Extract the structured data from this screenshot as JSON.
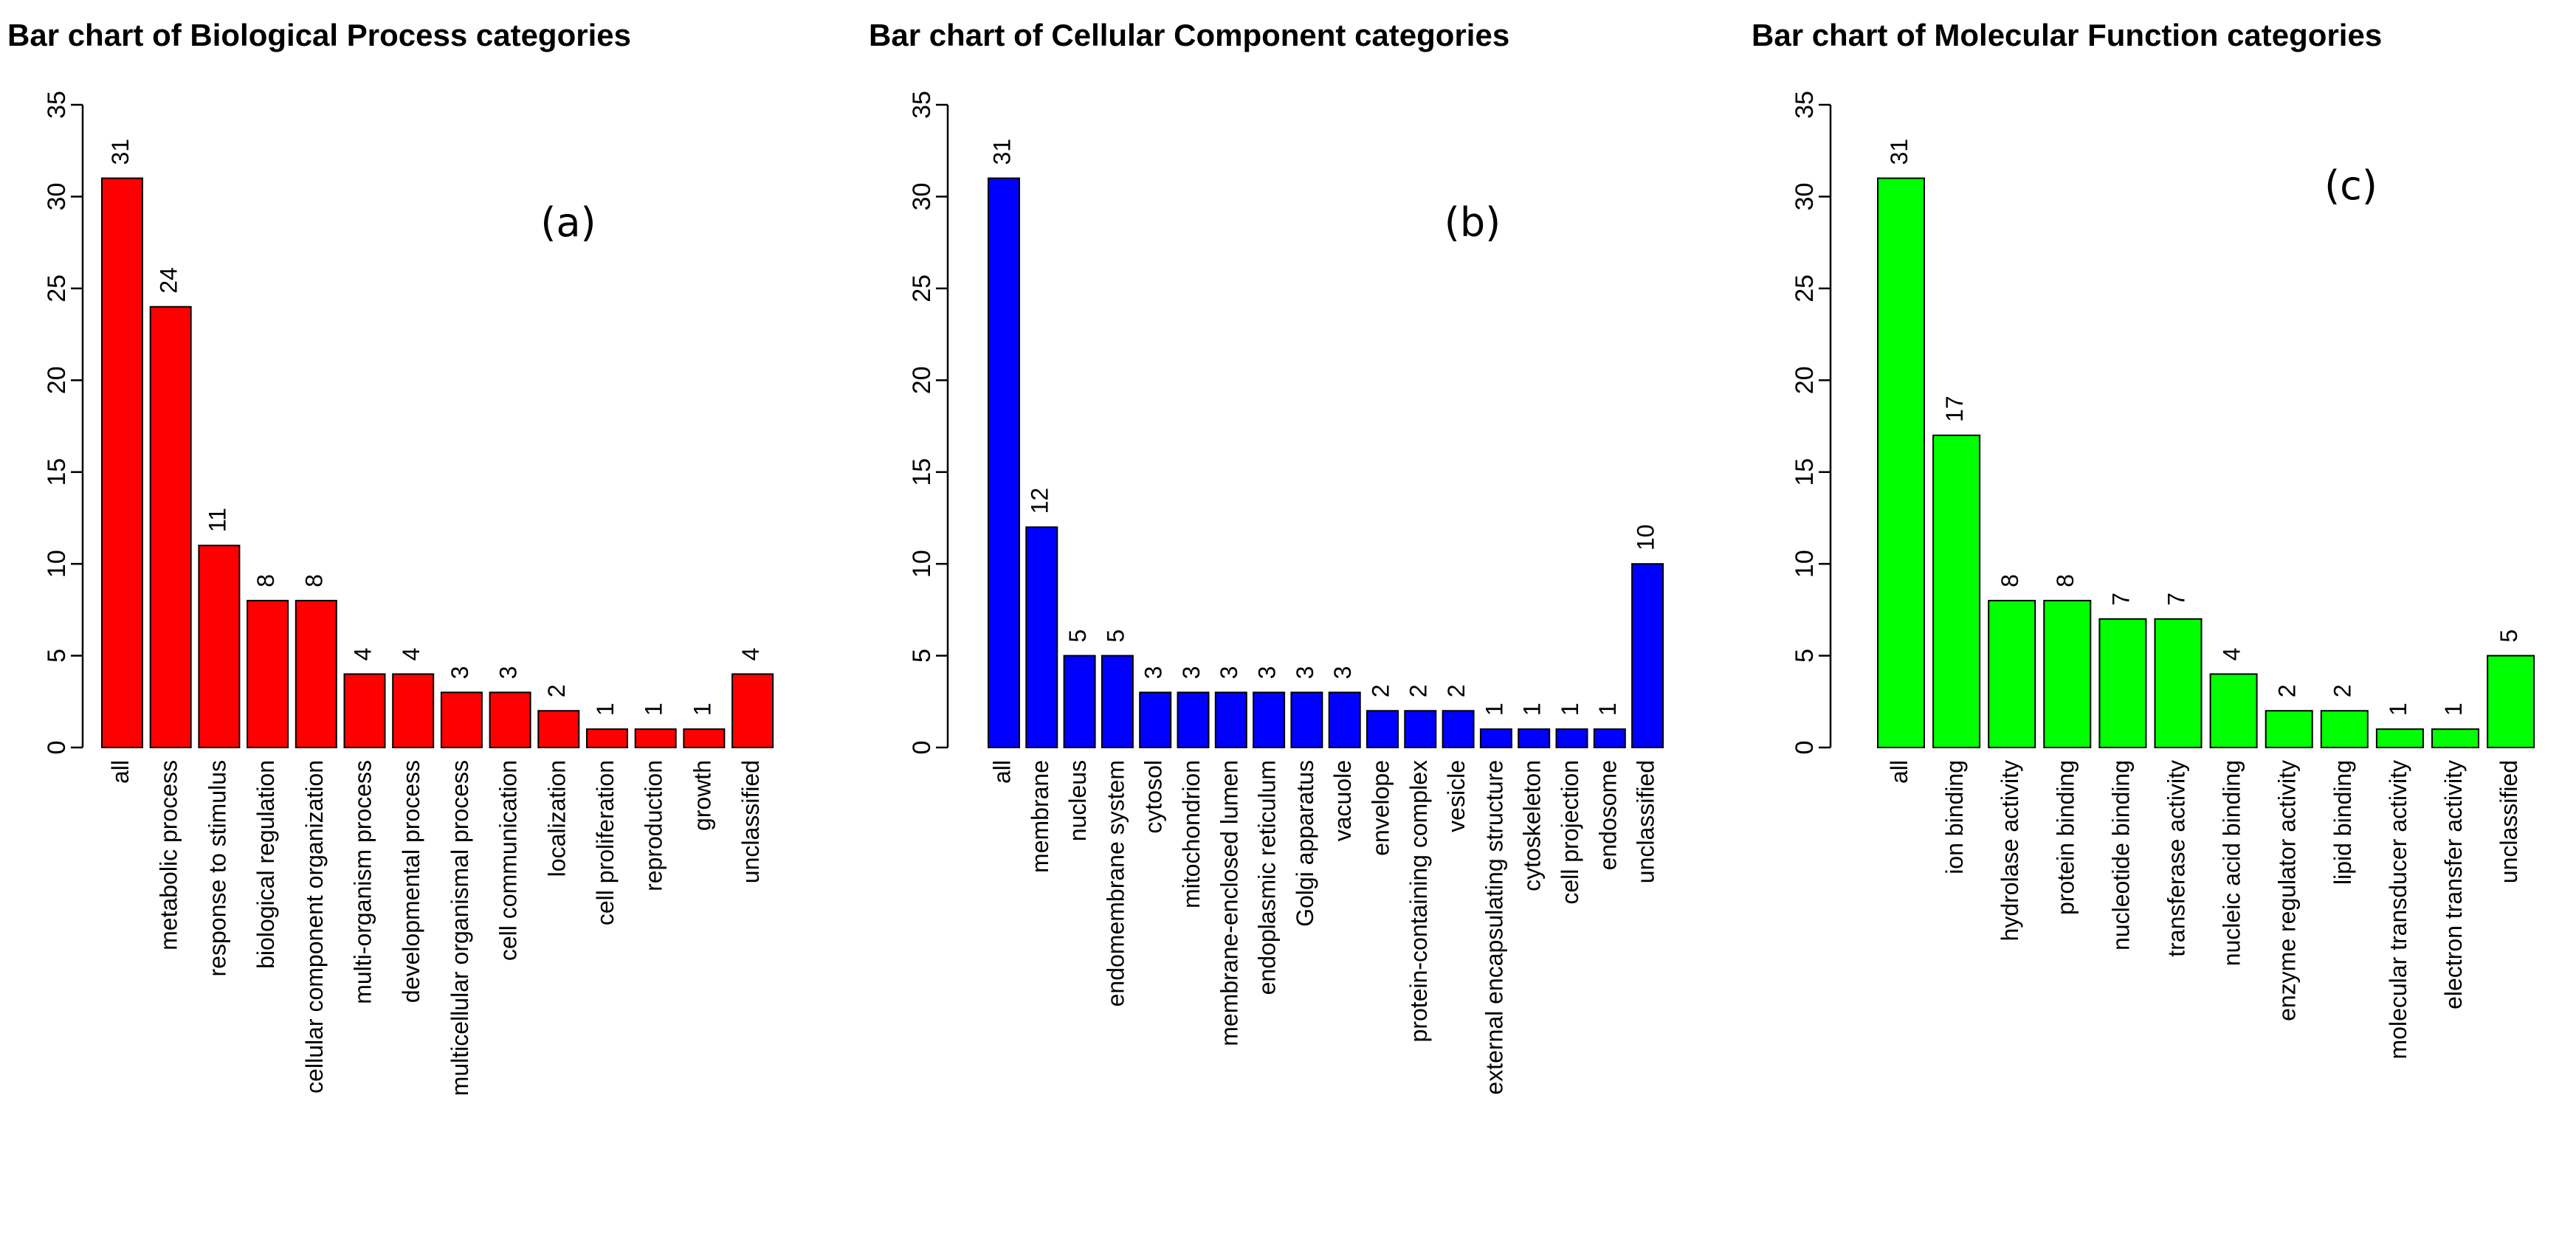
{
  "chart_data": [
    {
      "type": "bar",
      "title": "Bar chart of Biological Process categories",
      "panel_label": "(a)",
      "color": "#ff0000",
      "ylim": [
        0,
        35
      ],
      "yticks": [
        "0",
        "5",
        "10",
        "15",
        "20",
        "25",
        "30",
        "35"
      ],
      "categories": [
        "all",
        "metabolic process",
        "response to stimulus",
        "biological regulation",
        "cellular component organization",
        "multi-organism process",
        "developmental process",
        "multicellular organismal process",
        "cell communication",
        "localization",
        "cell proliferation",
        "reproduction",
        "growth",
        "unclassified"
      ],
      "values": [
        31,
        24,
        11,
        8,
        8,
        4,
        4,
        3,
        3,
        2,
        1,
        1,
        1,
        4
      ],
      "labels": [
        "31",
        "24",
        "11",
        "8",
        "8",
        "4",
        "4",
        "3",
        "3",
        "2",
        "1",
        "1",
        "1",
        "4"
      ]
    },
    {
      "type": "bar",
      "title": "Bar chart of Cellular Component categories",
      "panel_label": "(b)",
      "color": "#0000ff",
      "ylim": [
        0,
        35
      ],
      "yticks": [
        "0",
        "5",
        "10",
        "15",
        "20",
        "25",
        "30",
        "35"
      ],
      "categories": [
        "all",
        "membrane",
        "nucleus",
        "endomembrane system",
        "cytosol",
        "mitochondrion",
        "membrane-enclosed lumen",
        "endoplasmic reticulum",
        "Golgi apparatus",
        "vacuole",
        "envelope",
        "protein-containing complex",
        "vesicle",
        "external encapsulating structure",
        "cytoskeleton",
        "cell projection",
        "endosome",
        "unclassified"
      ],
      "values": [
        31,
        12,
        5,
        5,
        3,
        3,
        3,
        3,
        3,
        3,
        2,
        2,
        2,
        1,
        1,
        1,
        1,
        10
      ],
      "labels": [
        "31",
        "12",
        "5",
        "5",
        "3",
        "3",
        "3",
        "3",
        "3",
        "3",
        "2",
        "2",
        "2",
        "1",
        "1",
        "1",
        "1",
        "10"
      ]
    },
    {
      "type": "bar",
      "title": "Bar chart of Molecular Function categories",
      "panel_label": "(c)",
      "color": "#00ff00",
      "ylim": [
        0,
        35
      ],
      "yticks": [
        "0",
        "5",
        "10",
        "15",
        "20",
        "25",
        "30",
        "35"
      ],
      "categories": [
        "all",
        "ion binding",
        "hydrolase activity",
        "protein binding",
        "nucleotide binding",
        "transferase activity",
        "nucleic acid binding",
        "enzyme regulator activity",
        "lipid binding",
        "molecular transducer activity",
        "electron transfer activity",
        "unclassified"
      ],
      "values": [
        31,
        17,
        8,
        8,
        7,
        7,
        4,
        2,
        2,
        1,
        1,
        5
      ],
      "labels": [
        "31",
        "17",
        "8",
        "8",
        "7",
        "7",
        "4",
        "2",
        "2",
        "1",
        "1",
        "5"
      ]
    }
  ]
}
